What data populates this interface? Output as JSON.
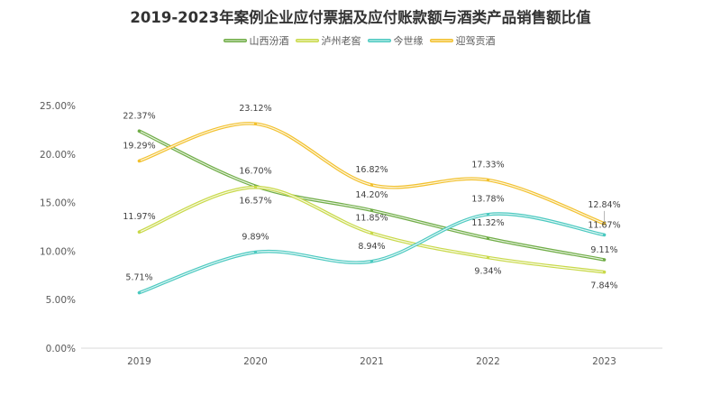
{
  "chart_data": {
    "type": "line",
    "title": "2019-2023年案例企业应付票据及应付账款额与酒类产品销售额比值",
    "xlabel": "",
    "ylabel": "",
    "categories": [
      "2019",
      "2020",
      "2021",
      "2022",
      "2023"
    ],
    "y_ticks": [
      "0.00%",
      "5.00%",
      "10.00%",
      "15.00%",
      "20.00%",
      "25.00%"
    ],
    "ylim": [
      0,
      25
    ],
    "grid": false,
    "smooth": true,
    "legend_position": "top-center",
    "series": [
      {
        "name": "山西汾酒",
        "color": "#70AD47",
        "values": [
          22.37,
          16.7,
          14.2,
          11.32,
          9.11
        ],
        "labels": [
          "22.37%",
          "16.70%",
          "14.20%",
          "11.32%",
          "9.11%"
        ]
      },
      {
        "name": "泸州老窖",
        "color": "#C9D94A",
        "values": [
          11.97,
          16.57,
          11.85,
          9.34,
          7.84
        ],
        "labels": [
          "11.97%",
          "16.57%",
          "11.85%",
          "9.34%",
          "7.84%"
        ]
      },
      {
        "name": "今世缘",
        "color": "#4CC9C0",
        "values": [
          5.71,
          9.89,
          8.94,
          13.78,
          11.67
        ],
        "labels": [
          "5.71%",
          "9.89%",
          "8.94%",
          "13.78%",
          "11.67%"
        ]
      },
      {
        "name": "迎驾贡酒",
        "color": "#F2C12E",
        "values": [
          19.29,
          23.12,
          16.82,
          17.33,
          12.84
        ],
        "labels": [
          "19.29%",
          "23.12%",
          "16.82%",
          "17.33%",
          "12.84%"
        ]
      }
    ]
  }
}
